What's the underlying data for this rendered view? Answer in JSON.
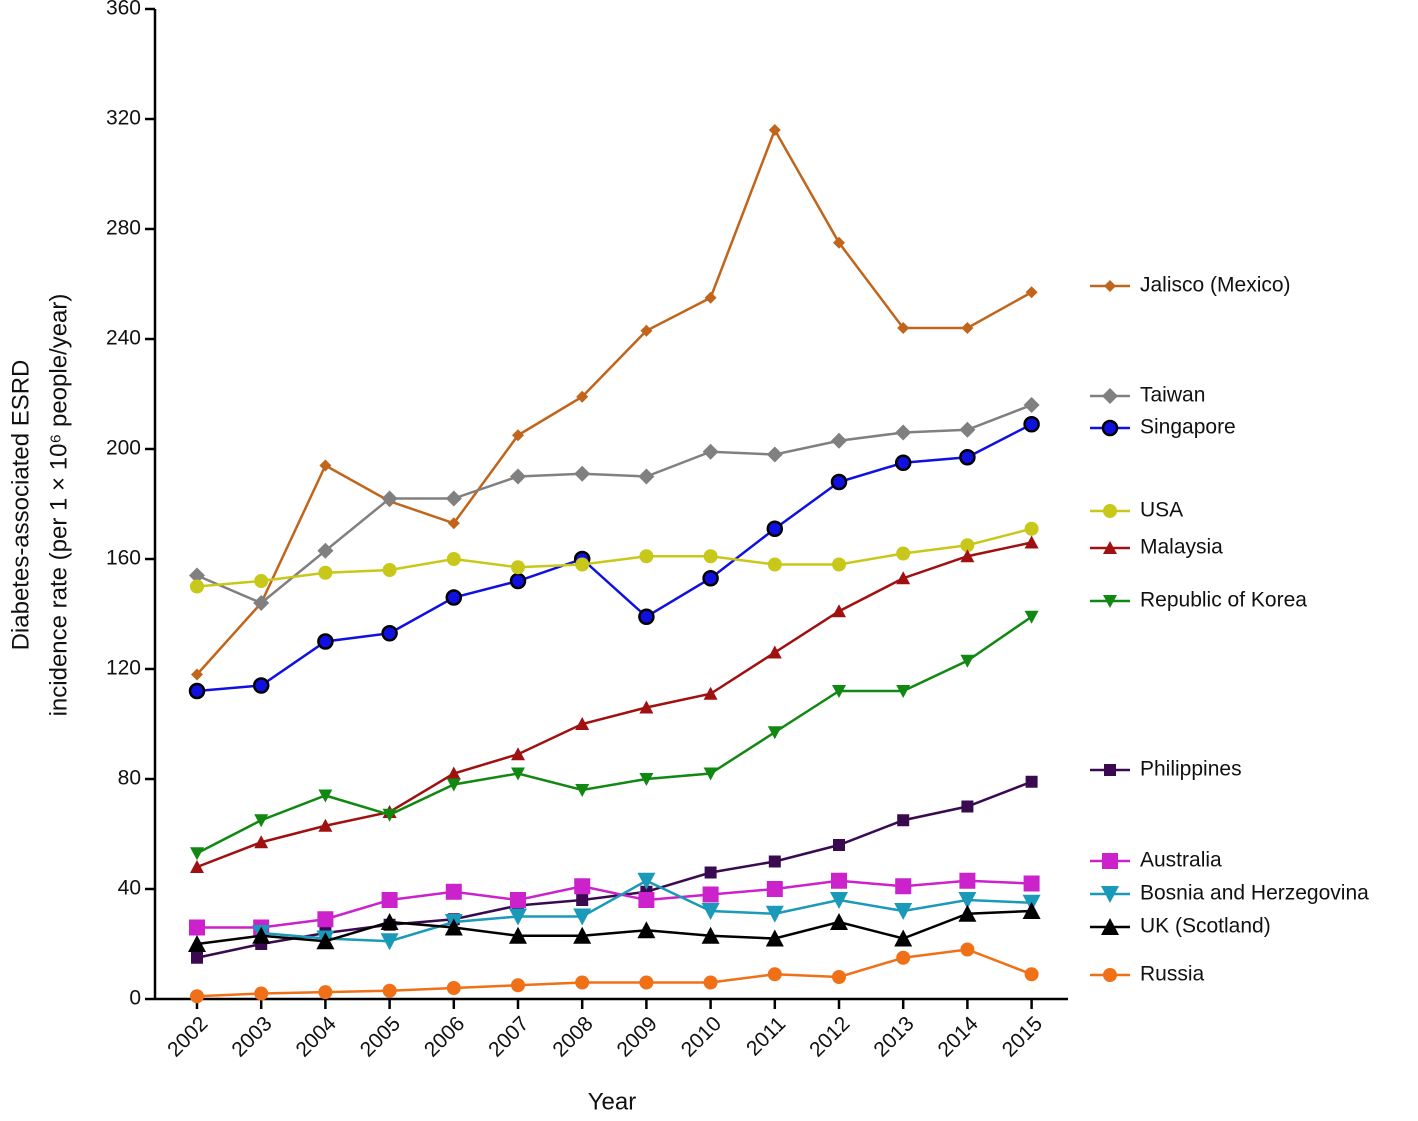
{
  "chart_data": {
    "type": "line",
    "x_label": "Year",
    "y_label": [
      "Diabetes-associated ESRD",
      "incidence rate (per 1 × 10⁶ people/year)"
    ],
    "categories": [
      "2002",
      "2003",
      "2004",
      "2005",
      "2006",
      "2007",
      "2008",
      "2009",
      "2010",
      "2011",
      "2012",
      "2013",
      "2014",
      "2015"
    ],
    "ylim": [
      0,
      360
    ],
    "yticks": [
      0,
      40,
      80,
      120,
      160,
      200,
      240,
      280,
      320,
      360
    ],
    "series": [
      {
        "name": "Jalisco (Mexico)",
        "color": "#c0651b",
        "marker": "diamond",
        "values": [
          118,
          144,
          194,
          181,
          173,
          205,
          219,
          243,
          255,
          316,
          275,
          244,
          244,
          257
        ]
      },
      {
        "name": "Taiwan",
        "color": "#808080",
        "marker": "diamond-large",
        "values": [
          154,
          144,
          163,
          182,
          182,
          190,
          191,
          190,
          199,
          198,
          203,
          206,
          207,
          216
        ]
      },
      {
        "name": "Singapore",
        "color": "#1010e0",
        "marker": "circle-outlined",
        "values": [
          112,
          114,
          130,
          133,
          146,
          152,
          160,
          139,
          153,
          171,
          188,
          195,
          197,
          209
        ]
      },
      {
        "name": "USA",
        "color": "#c8c81a",
        "marker": "circle",
        "values": [
          150,
          152,
          155,
          156,
          160,
          157,
          158,
          161,
          161,
          158,
          158,
          162,
          165,
          171
        ]
      },
      {
        "name": "Malaysia",
        "color": "#a01010",
        "marker": "triangle",
        "values": [
          48,
          57,
          63,
          68,
          82,
          89,
          100,
          106,
          111,
          126,
          141,
          153,
          161,
          166
        ]
      },
      {
        "name": "Republic of Korea",
        "color": "#118811",
        "marker": "triangle-down",
        "values": [
          53,
          65,
          74,
          67,
          78,
          82,
          76,
          80,
          82,
          97,
          112,
          112,
          123,
          139
        ]
      },
      {
        "name": "Philippines",
        "color": "#3a0a50",
        "marker": "square",
        "values": [
          15,
          20,
          24,
          27,
          29,
          34,
          36,
          39,
          46,
          50,
          56,
          65,
          70,
          79
        ]
      },
      {
        "name": "Australia",
        "color": "#cc22cc",
        "marker": "square-large",
        "values": [
          26,
          26,
          29,
          36,
          39,
          36,
          41,
          36,
          38,
          40,
          43,
          41,
          43,
          42
        ]
      },
      {
        "name": "Bosnia and Herzegovina",
        "color": "#1a9ab8",
        "marker": "triangle-down-large",
        "values": [
          null,
          24,
          22,
          21,
          28,
          30,
          30,
          43,
          32,
          31,
          36,
          32,
          36,
          35
        ]
      },
      {
        "name": "UK (Scotland)",
        "color": "#000000",
        "marker": "triangle-large",
        "values": [
          20,
          23,
          21,
          28,
          26,
          23,
          23,
          25,
          23,
          22,
          28,
          22,
          31,
          32
        ]
      },
      {
        "name": "Russia",
        "color": "#f07018",
        "marker": "circle",
        "values": [
          1,
          2,
          2.5,
          3,
          4,
          5,
          6,
          6,
          6,
          9,
          8,
          15,
          18,
          9
        ]
      }
    ]
  }
}
